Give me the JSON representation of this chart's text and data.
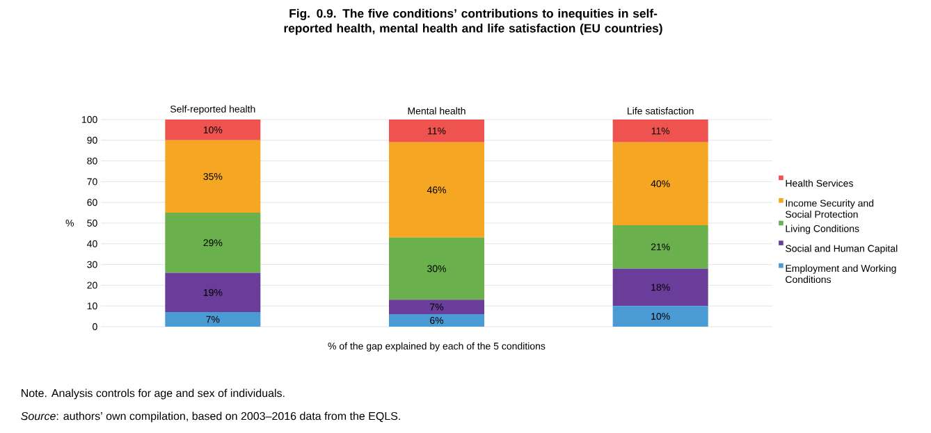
{
  "chart_data": {
    "type": "bar",
    "stacked": true,
    "title": "Fig. 0.9. The five conditions’ contributions to inequities in self-reported health, mental health and life satisfaction (EU countries)",
    "categories": [
      "Self-reported health",
      "Mental health",
      "Life satisfaction"
    ],
    "xlabel": "% of the gap explained by each of the 5 conditions",
    "ylabel": "%",
    "ylim": [
      0,
      100
    ],
    "yticks": [
      0,
      10,
      20,
      30,
      40,
      50,
      60,
      70,
      80,
      90,
      100
    ],
    "grid": "y",
    "legend": "right",
    "series": [
      {
        "name": "Employment and Working Conditions",
        "color": "#4a9ad4",
        "values": [
          7,
          6,
          10
        ],
        "value_labels": [
          "7%",
          "6%",
          "10%"
        ]
      },
      {
        "name": "Social and Human Capital",
        "color": "#6a3d9a",
        "values": [
          19,
          7,
          18
        ],
        "value_labels": [
          "19%",
          "7%",
          "18%"
        ]
      },
      {
        "name": "Living Conditions",
        "color": "#6ab04c",
        "values": [
          29,
          30,
          21
        ],
        "value_labels": [
          "29%",
          "30%",
          "21%"
        ]
      },
      {
        "name": "Income Security and Social Protection",
        "color": "#f5a623",
        "values": [
          35,
          46,
          40
        ],
        "value_labels": [
          "35%",
          "46%",
          "40%"
        ]
      },
      {
        "name": "Health Services",
        "color": "#ef5350",
        "values": [
          10,
          11,
          11
        ],
        "value_labels": [
          "10%",
          "11%",
          "11%"
        ]
      }
    ],
    "annotations": [
      "Note. Analysis controls for age and sex of individuals.",
      "*Source*: authors’ own compilation, based on 2003–2016 data from the EQLS."
    ]
  }
}
